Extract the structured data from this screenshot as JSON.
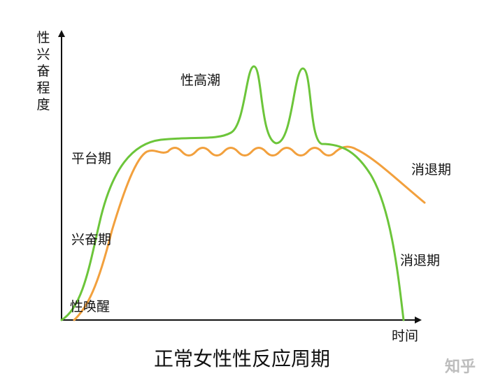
{
  "title": "正常女性性反应周期",
  "y_axis_label": "性兴奋程度",
  "x_axis_label": "时间",
  "labels": {
    "orgasm": "性高潮",
    "plateau": "平台期",
    "resolution_upper": "消退期",
    "excitement": "兴奋期",
    "resolution_lower": "消退期",
    "arousal": "性唤醒"
  },
  "watermark": "知乎",
  "colors": {
    "green_curve": "#6cc53a",
    "orange_curve": "#f2a03d",
    "axis": "#111111"
  }
}
